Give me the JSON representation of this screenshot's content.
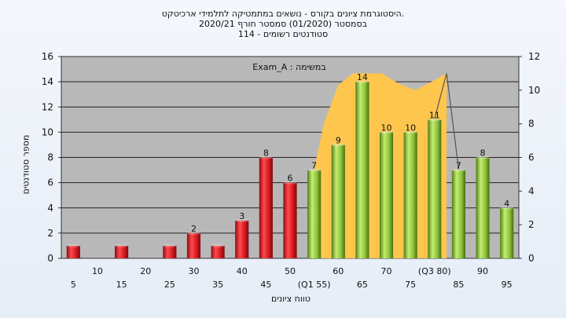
{
  "title_lines": [
    "היסטוגרמת ציונים בקורס - נושאים במתמטיקה לתלמידי ארכיטקט.",
    "בסמסטר  (01/2020)  סמסטר חורף  2020/21",
    "סטודנטים רשומים - 114"
  ],
  "chart_data": {
    "type": "bar",
    "title": "היסטוגרמת ציונים בקורס - נושאים במתמטיקה לתלמידי ארכיטקט.",
    "xlabel": "טווח ציונים",
    "ylabel": "מספר סטודנטים",
    "caption": "Exam_A : במשימה",
    "ylim": [
      0,
      16
    ],
    "y_ticks": [
      0,
      2,
      4,
      6,
      8,
      10,
      12,
      14,
      16
    ],
    "y2lim": [
      0,
      12
    ],
    "y2_ticks": [
      0,
      2,
      4,
      6,
      8,
      10,
      12
    ],
    "grid": "horizontal",
    "categories": [
      "5",
      "10",
      "15",
      "20",
      "25",
      "30",
      "35",
      "40",
      "45",
      "50",
      "(Q1 55)",
      "60",
      "65",
      "70",
      "75",
      "(Q3 80)",
      "85",
      "90",
      "95"
    ],
    "values": [
      1,
      0,
      1,
      0,
      1,
      2,
      1,
      3,
      8,
      6,
      7,
      9,
      14,
      10,
      10,
      11,
      7,
      8,
      4
    ],
    "data_labels": [
      "",
      "",
      "",
      "",
      "",
      "2",
      "",
      "3",
      "8",
      "6",
      "7",
      "9",
      "14",
      "10",
      "10",
      "11",
      "7",
      "8",
      "4"
    ],
    "bar_colors": {
      "low": "#e3242b",
      "high": "#8cc43c"
    },
    "highlight_from_index": 10,
    "area_series": {
      "color": "#ffc64e",
      "x_index": [
        10,
        10.4,
        11,
        11.6,
        12.2,
        12.8,
        13.5,
        14.2,
        15,
        15.5
      ],
      "y2_values": [
        5.3,
        8.0,
        10.3,
        11.0,
        11.0,
        11.0,
        10.4,
        10.0,
        10.6,
        11.0
      ]
    },
    "line_series": {
      "color": "#555555",
      "x_index": [
        15,
        15.5,
        16
      ],
      "y2_values": [
        8.3,
        11.0,
        5.3
      ]
    }
  }
}
